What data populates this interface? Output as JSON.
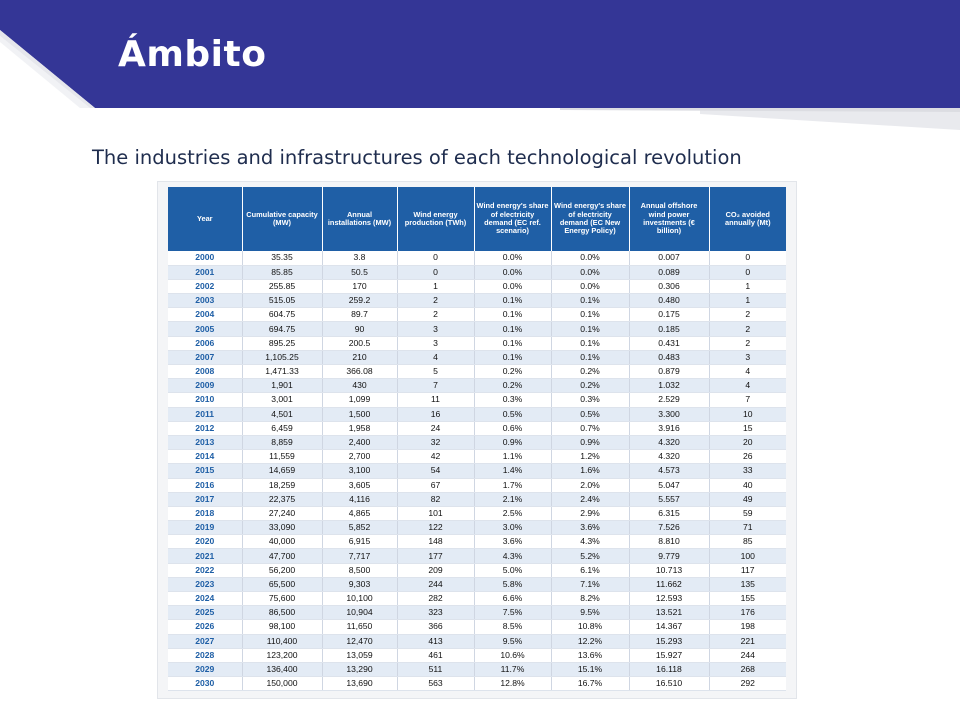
{
  "title": "Ámbito",
  "subtitle": "The industries and infrastructures of each technological revolution",
  "colors": {
    "header_band": "#343696",
    "table_header": "#1f5fa6",
    "row_alt": "#e3ebf5",
    "year_text": "#1f5fa6"
  },
  "table": {
    "headers": [
      "Year",
      "Cumulative capacity (MW)",
      "Annual installations (MW)",
      "Wind energy production (TWh)",
      "Wind energy's share of electricity demand (EC ref. scenario)",
      "Wind energy's share of electricity demand (EC New Energy Policy)",
      "Annual offshore wind power investments (€ billion)",
      "CO₂ avoided annually (Mt)"
    ],
    "rows": [
      [
        "2000",
        "35.35",
        "3.8",
        "0",
        "0.0%",
        "0.0%",
        "0.007",
        "0"
      ],
      [
        "2001",
        "85.85",
        "50.5",
        "0",
        "0.0%",
        "0.0%",
        "0.089",
        "0"
      ],
      [
        "2002",
        "255.85",
        "170",
        "1",
        "0.0%",
        "0.0%",
        "0.306",
        "1"
      ],
      [
        "2003",
        "515.05",
        "259.2",
        "2",
        "0.1%",
        "0.1%",
        "0.480",
        "1"
      ],
      [
        "2004",
        "604.75",
        "89.7",
        "2",
        "0.1%",
        "0.1%",
        "0.175",
        "2"
      ],
      [
        "2005",
        "694.75",
        "90",
        "3",
        "0.1%",
        "0.1%",
        "0.185",
        "2"
      ],
      [
        "2006",
        "895.25",
        "200.5",
        "3",
        "0.1%",
        "0.1%",
        "0.431",
        "2"
      ],
      [
        "2007",
        "1,105.25",
        "210",
        "4",
        "0.1%",
        "0.1%",
        "0.483",
        "3"
      ],
      [
        "2008",
        "1,471.33",
        "366.08",
        "5",
        "0.2%",
        "0.2%",
        "0.879",
        "4"
      ],
      [
        "2009",
        "1,901",
        "430",
        "7",
        "0.2%",
        "0.2%",
        "1.032",
        "4"
      ],
      [
        "2010",
        "3,001",
        "1,099",
        "11",
        "0.3%",
        "0.3%",
        "2.529",
        "7"
      ],
      [
        "2011",
        "4,501",
        "1,500",
        "16",
        "0.5%",
        "0.5%",
        "3.300",
        "10"
      ],
      [
        "2012",
        "6,459",
        "1,958",
        "24",
        "0.6%",
        "0.7%",
        "3.916",
        "15"
      ],
      [
        "2013",
        "8,859",
        "2,400",
        "32",
        "0.9%",
        "0.9%",
        "4.320",
        "20"
      ],
      [
        "2014",
        "11,559",
        "2,700",
        "42",
        "1.1%",
        "1.2%",
        "4.320",
        "26"
      ],
      [
        "2015",
        "14,659",
        "3,100",
        "54",
        "1.4%",
        "1.6%",
        "4.573",
        "33"
      ],
      [
        "2016",
        "18,259",
        "3,605",
        "67",
        "1.7%",
        "2.0%",
        "5.047",
        "40"
      ],
      [
        "2017",
        "22,375",
        "4,116",
        "82",
        "2.1%",
        "2.4%",
        "5.557",
        "49"
      ],
      [
        "2018",
        "27,240",
        "4,865",
        "101",
        "2.5%",
        "2.9%",
        "6.315",
        "59"
      ],
      [
        "2019",
        "33,090",
        "5,852",
        "122",
        "3.0%",
        "3.6%",
        "7.526",
        "71"
      ],
      [
        "2020",
        "40,000",
        "6,915",
        "148",
        "3.6%",
        "4.3%",
        "8.810",
        "85"
      ],
      [
        "2021",
        "47,700",
        "7,717",
        "177",
        "4.3%",
        "5.2%",
        "9.779",
        "100"
      ],
      [
        "2022",
        "56,200",
        "8,500",
        "209",
        "5.0%",
        "6.1%",
        "10.713",
        "117"
      ],
      [
        "2023",
        "65,500",
        "9,303",
        "244",
        "5.8%",
        "7.1%",
        "11.662",
        "135"
      ],
      [
        "2024",
        "75,600",
        "10,100",
        "282",
        "6.6%",
        "8.2%",
        "12.593",
        "155"
      ],
      [
        "2025",
        "86,500",
        "10,904",
        "323",
        "7.5%",
        "9.5%",
        "13.521",
        "176"
      ],
      [
        "2026",
        "98,100",
        "11,650",
        "366",
        "8.5%",
        "10.8%",
        "14.367",
        "198"
      ],
      [
        "2027",
        "110,400",
        "12,470",
        "413",
        "9.5%",
        "12.2%",
        "15.293",
        "221"
      ],
      [
        "2028",
        "123,200",
        "13,059",
        "461",
        "10.6%",
        "13.6%",
        "15.927",
        "244"
      ],
      [
        "2029",
        "136,400",
        "13,290",
        "511",
        "11.7%",
        "15.1%",
        "16.118",
        "268"
      ],
      [
        "2030",
        "150,000",
        "13,690",
        "563",
        "12.8%",
        "16.7%",
        "16.510",
        "292"
      ]
    ]
  }
}
